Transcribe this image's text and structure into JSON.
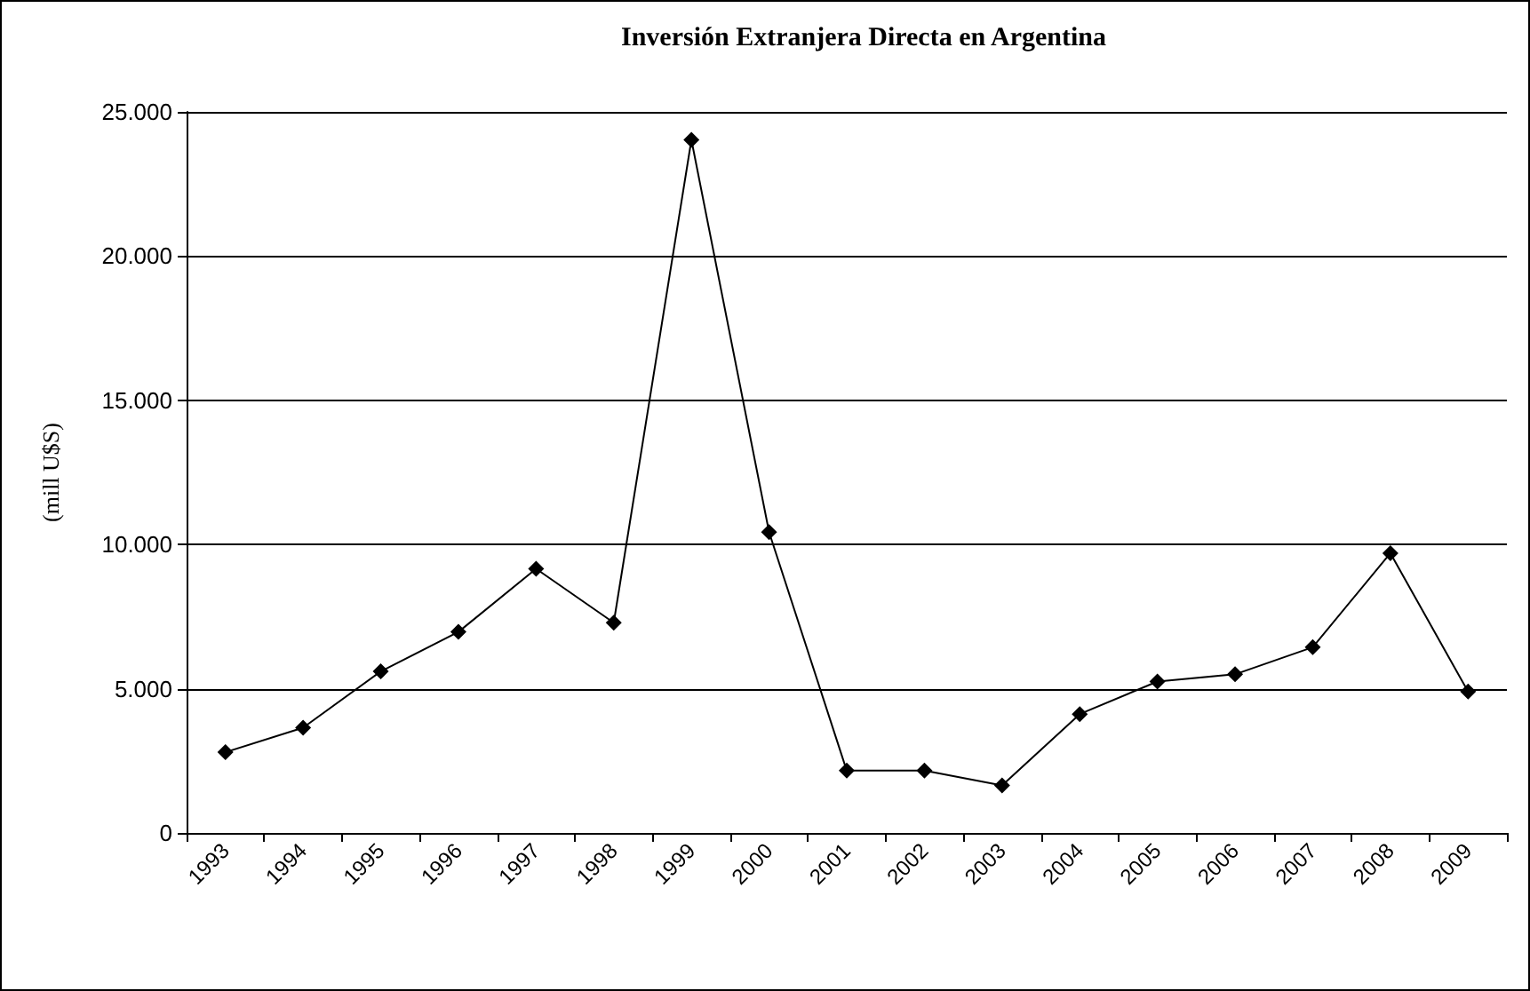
{
  "chart_data": {
    "type": "line",
    "title": "Inversión Extranjera Directa en Argentina",
    "ylabel": "(mill U$S)",
    "categories": [
      "1993",
      "1994",
      "1995",
      "1996",
      "1997",
      "1998",
      "1999",
      "2000",
      "2001",
      "2002",
      "2003",
      "2004",
      "2005",
      "2006",
      "2007",
      "2008",
      "2009"
    ],
    "series": [
      {
        "color": "#000000",
        "values": [
          2800,
          3650,
          5600,
          6970,
          9160,
          7290,
          24030,
          10430,
          2160,
          2160,
          1650,
          4120,
          5250,
          5500,
          6440,
          9700,
          4900
        ]
      }
    ],
    "ylim": [
      0,
      25000
    ],
    "yticks": [
      {
        "value": 0,
        "label": "0"
      },
      {
        "value": 5000,
        "label": "5.000"
      },
      {
        "value": 10000,
        "label": "10.000"
      },
      {
        "value": 15000,
        "label": "15.000"
      },
      {
        "value": 20000,
        "label": "20.000"
      },
      {
        "value": 25000,
        "label": "25.000"
      }
    ],
    "grid": "y",
    "marker": "diamond",
    "line_style": "solid"
  }
}
